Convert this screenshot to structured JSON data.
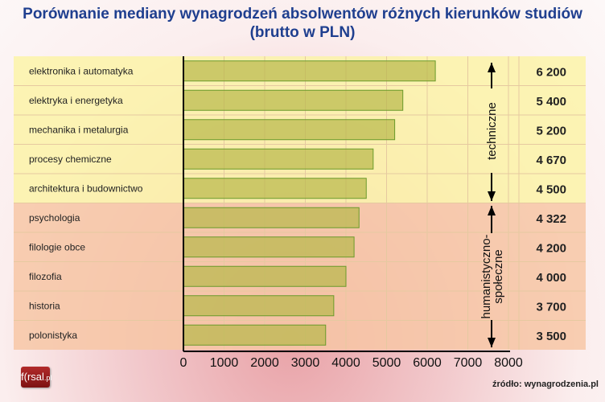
{
  "chart_data": {
    "type": "bar",
    "orientation": "horizontal",
    "title": "Porównanie mediany wynagrodzeń absolwentów różnych kierunków studiów",
    "subtitle": "(brutto w PLN)",
    "categories": [
      "elektronika i automatyka",
      "elektryka i energetyka",
      "mechanika i metalurgia",
      "procesy chemiczne",
      "architektura i budownictwo",
      "psychologia",
      "filologie obce",
      "filozofia",
      "historia",
      "polonistyka"
    ],
    "values": [
      6200,
      5400,
      5200,
      4670,
      4500,
      4322,
      4200,
      4000,
      3700,
      3500
    ],
    "value_labels": [
      "6 200",
      "5 400",
      "5 200",
      "4 670",
      "4 500",
      "4 322",
      "4 200",
      "4 000",
      "3 700",
      "3 500"
    ],
    "groups": [
      {
        "label": "techniczne",
        "rows": [
          0,
          4
        ],
        "color": "#fbf3a8"
      },
      {
        "label_line1": "humanistyczno-",
        "label_line2": "społeczne",
        "rows": [
          5,
          9
        ],
        "color": "#f7c7a6"
      }
    ],
    "xlim": [
      0,
      8000
    ],
    "xticks": [
      "0",
      "1000",
      "2000",
      "3000",
      "4000",
      "5000",
      "6000",
      "7000",
      "8000"
    ],
    "bar_color": "#b8b84a",
    "grid": true,
    "legend": "none"
  },
  "logo": {
    "text_a": "f",
    "text_b": "rsal",
    "text_c": ".pl"
  },
  "source": "źródło: wynagrodzenia.pl"
}
